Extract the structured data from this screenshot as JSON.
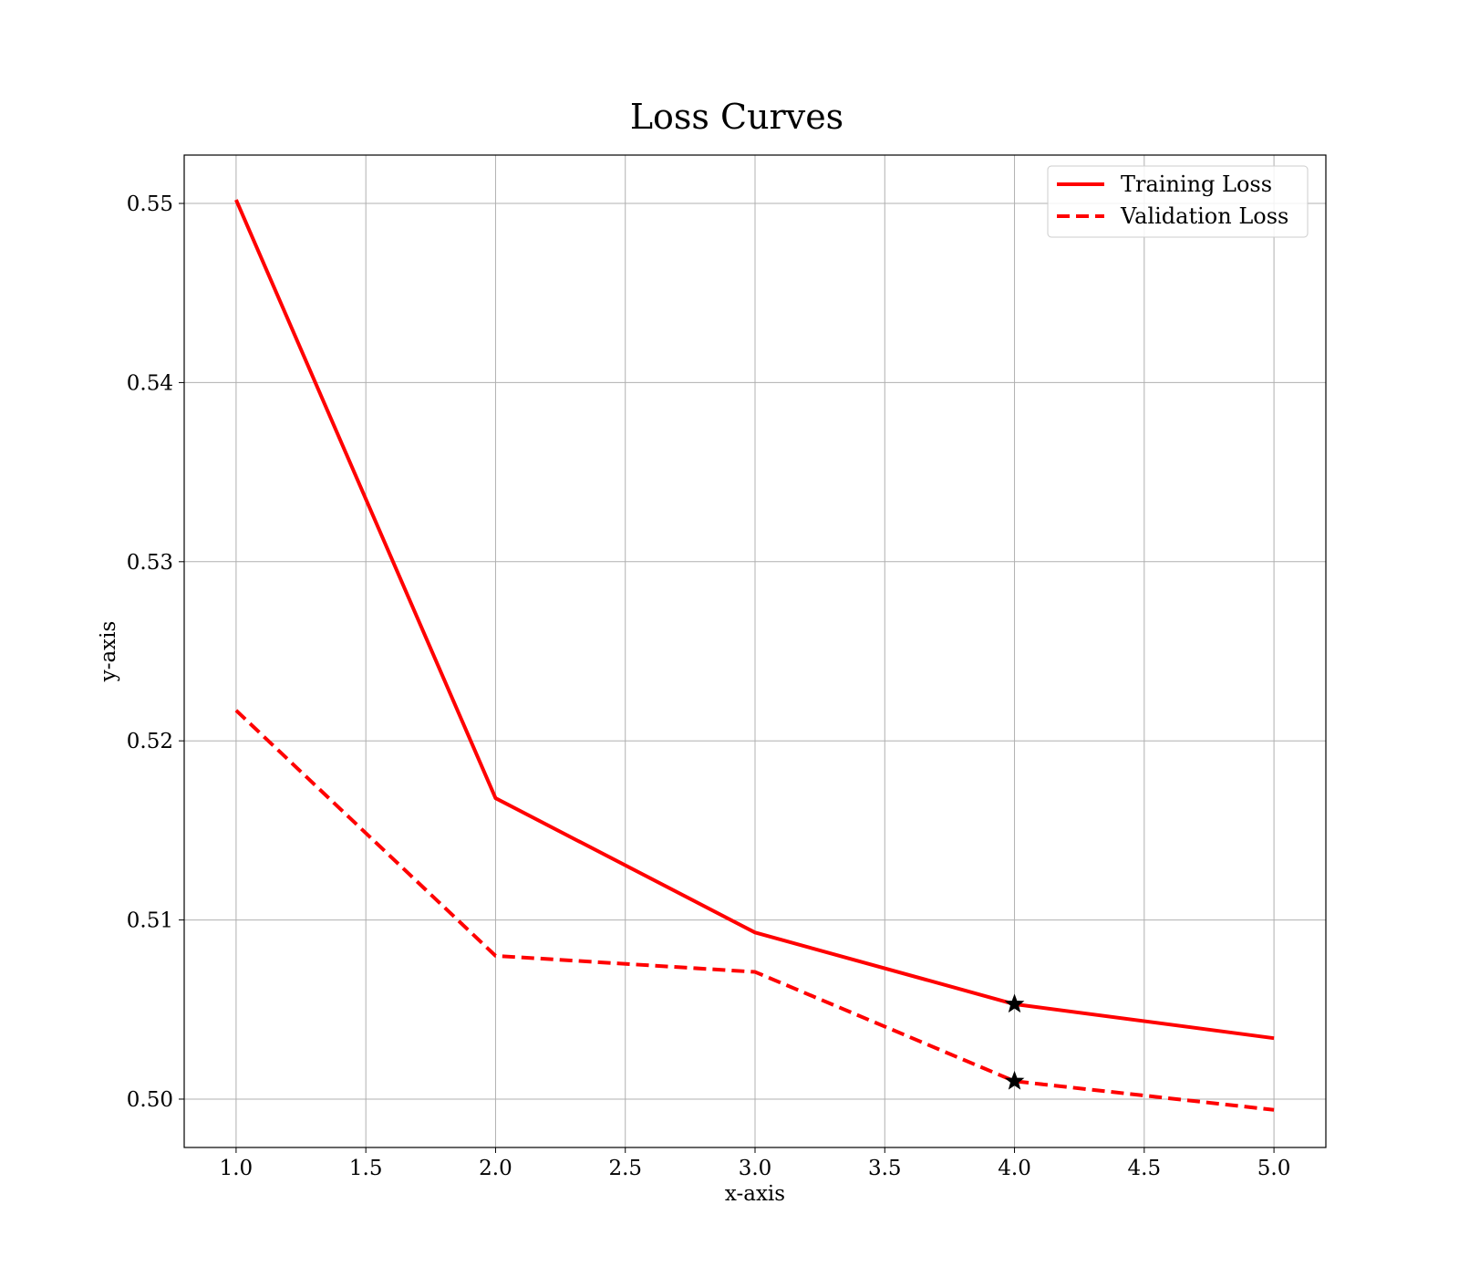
{
  "chart_data": {
    "type": "line",
    "title": "Loss Curves",
    "xlabel": "x-axis",
    "ylabel": "y-axis",
    "x": [
      1,
      2,
      3,
      4,
      5
    ],
    "xlim": [
      0.8,
      5.2
    ],
    "ylim": [
      0.4973,
      0.5527
    ],
    "xticks": [
      1.0,
      1.5,
      2.0,
      2.5,
      3.0,
      3.5,
      4.0,
      4.5,
      5.0
    ],
    "xtick_labels": [
      "1.0",
      "1.5",
      "2.0",
      "2.5",
      "3.0",
      "3.5",
      "4.0",
      "4.5",
      "5.0"
    ],
    "yticks": [
      0.5,
      0.51,
      0.52,
      0.53,
      0.54,
      0.55
    ],
    "ytick_labels": [
      "0.50",
      "0.51",
      "0.52",
      "0.53",
      "0.54",
      "0.55"
    ],
    "grid": true,
    "legend_position": "upper right",
    "series": [
      {
        "name": "Training Loss",
        "values": [
          0.5502,
          0.5168,
          0.5093,
          0.5053,
          0.5034
        ],
        "color": "#ff0000",
        "style": "solid",
        "markers": [
          {
            "x": 4,
            "y": 0.5053,
            "symbol": "star",
            "color": "#000000"
          }
        ]
      },
      {
        "name": "Validation Loss",
        "values": [
          0.5217,
          0.508,
          0.5071,
          0.501,
          0.4994
        ],
        "color": "#ff0000",
        "style": "dashed",
        "markers": [
          {
            "x": 4,
            "y": 0.501,
            "symbol": "star",
            "color": "#000000"
          }
        ]
      }
    ]
  }
}
